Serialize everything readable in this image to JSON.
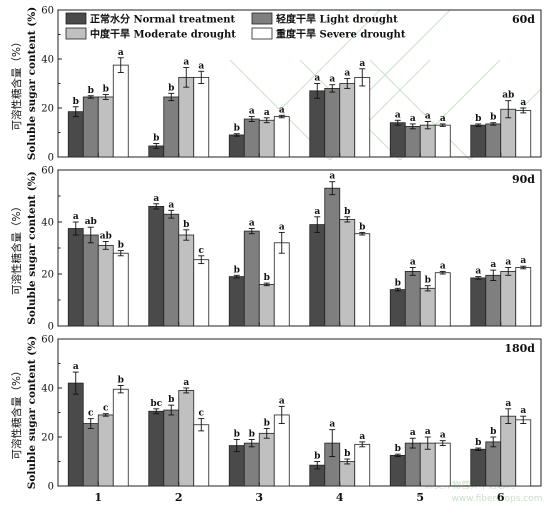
{
  "colors": {
    "normal": "#4a4a4a",
    "light": "#7f7f7f",
    "moderate": "#c0c0c0",
    "severe": "#ffffff",
    "watermark": "#cfe6cf"
  },
  "watermark": {
    "line1": "麻类作物营养中信息网",
    "line2": "www.fibercrops.com"
  },
  "chart_data": {
    "type": "bar",
    "categories": [
      "1",
      "2",
      "3",
      "4",
      "5",
      "6"
    ],
    "ylabel_cn": "可溶性糖含量（%）",
    "ylabel_en": "Soluble sugar content (%)",
    "ylim": [
      0,
      60
    ],
    "yticks": [
      0,
      20,
      40,
      60
    ],
    "legend": [
      {
        "key": "normal",
        "label": "正常水分 Normal treatment"
      },
      {
        "key": "light",
        "label": "轻度干旱 Light drought"
      },
      {
        "key": "moderate",
        "label": "中度干旱 Moderate drought"
      },
      {
        "key": "severe",
        "label": "重度干旱 Severe drought"
      }
    ],
    "panels": [
      {
        "title": "60d",
        "series": [
          {
            "key": "normal",
            "values": [
              18.5,
              4.5,
              9,
              27,
              14,
              13
            ],
            "err": [
              2,
              1,
              0.5,
              3,
              1,
              0.5
            ],
            "sig": [
              "b",
              "b",
              "b",
              "a",
              "a",
              "b"
            ]
          },
          {
            "key": "light",
            "values": [
              24.5,
              24.5,
              15.5,
              28,
              12.5,
              13.5
            ],
            "err": [
              0.5,
              1.5,
              1,
              1.5,
              1,
              0.5
            ],
            "sig": [
              "b",
              "b",
              "a",
              "a",
              "a",
              "b"
            ]
          },
          {
            "key": "moderate",
            "values": [
              24.5,
              32.5,
              15,
              30,
              13,
              19.5
            ],
            "err": [
              1,
              4,
              1,
              2,
              1.5,
              3.5
            ],
            "sig": [
              "b",
              "a",
              "a",
              "a",
              "a",
              "ab"
            ]
          },
          {
            "key": "severe",
            "values": [
              37.5,
              32.5,
              16.5,
              32.5,
              13,
              19
            ],
            "err": [
              3,
              2.5,
              0.5,
              3.5,
              0.5,
              1
            ],
            "sig": [
              "a",
              "a",
              "a",
              "a",
              "a",
              "a"
            ]
          }
        ]
      },
      {
        "title": "90d",
        "series": [
          {
            "key": "normal",
            "values": [
              37.5,
              46,
              19,
              39,
              14,
              18.5
            ],
            "err": [
              2.5,
              1,
              0.5,
              3,
              0.5,
              0.5
            ],
            "sig": [
              "a",
              "a",
              "b",
              "a",
              "b",
              "a"
            ]
          },
          {
            "key": "light",
            "values": [
              35,
              43,
              36.5,
              53,
              21,
              19.5
            ],
            "err": [
              3,
              1.5,
              1,
              2.5,
              1.5,
              2
            ],
            "sig": [
              "ab",
              "a",
              "a",
              "a",
              "a",
              "a"
            ]
          },
          {
            "key": "moderate",
            "values": [
              31,
              35,
              16,
              41,
              14.5,
              21
            ],
            "err": [
              1.5,
              2,
              0.5,
              1,
              1,
              1.5
            ],
            "sig": [
              "ab",
              "b",
              "b",
              "b",
              "b",
              "a"
            ]
          },
          {
            "key": "severe",
            "values": [
              28,
              25.5,
              32,
              35.5,
              20.5,
              22.5
            ],
            "err": [
              1,
              1.5,
              4,
              0.5,
              0.5,
              0.5
            ],
            "sig": [
              "b",
              "c",
              "a",
              "b",
              "a",
              "a"
            ]
          }
        ]
      },
      {
        "title": "180d",
        "series": [
          {
            "key": "normal",
            "values": [
              42,
              30.5,
              16.5,
              8.5,
              12.5,
              15
            ],
            "err": [
              4.5,
              1,
              2.5,
              1.5,
              0.5,
              0.5
            ],
            "sig": [
              "a",
              "bc",
              "b",
              "b",
              "b",
              "b"
            ]
          },
          {
            "key": "light",
            "values": [
              25.5,
              31,
              17.5,
              17.5,
              17.5,
              18
            ],
            "err": [
              2,
              2,
              1.5,
              5.5,
              2,
              2
            ],
            "sig": [
              "c",
              "b",
              "b",
              "a",
              "a",
              "b"
            ]
          },
          {
            "key": "moderate",
            "values": [
              29,
              39,
              21.5,
              10,
              17.5,
              28.5
            ],
            "err": [
              0.5,
              1,
              2,
              1,
              2.5,
              3
            ],
            "sig": [
              "c",
              "a",
              "b",
              "b",
              "a",
              "a"
            ]
          },
          {
            "key": "severe",
            "values": [
              39.5,
              25,
              29,
              17,
              17.5,
              27
            ],
            "err": [
              1.5,
              2.5,
              3.5,
              1,
              1,
              1.5
            ],
            "sig": [
              "b",
              "c",
              "a",
              "a",
              "a",
              "a"
            ]
          }
        ]
      }
    ]
  }
}
